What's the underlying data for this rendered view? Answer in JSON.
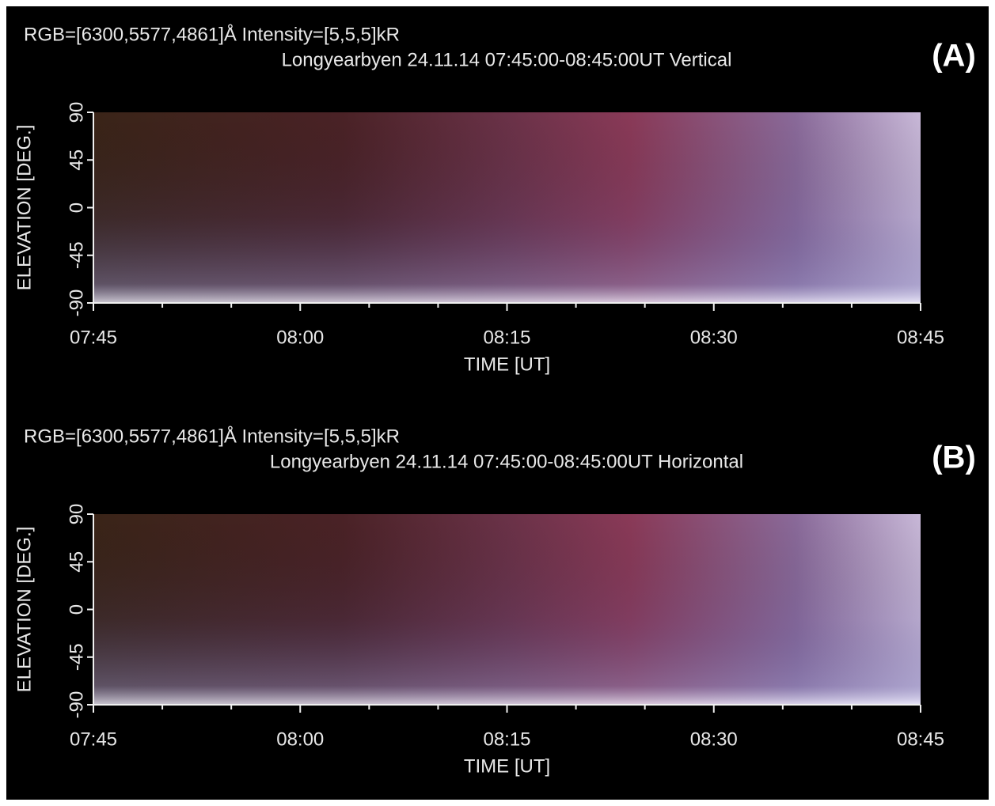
{
  "chart_data": [
    {
      "type": "keogram",
      "title": "RGB=[6300,5577,4861]Å Intensity=[5,5,5]kR",
      "subtitle": "Longyearbyen 24.11.14 07:45:00-08:45:00UT Vertical",
      "label": "(A)",
      "xlabel": "TIME [UT]",
      "ylabel": "ELEVATION [DEG.]",
      "categories": [
        "07:45",
        "08:00",
        "08:15",
        "08:30",
        "08:45"
      ],
      "ylim": [
        -90,
        90
      ],
      "yticks": [
        -90,
        -45,
        0,
        45,
        90
      ]
    },
    {
      "type": "keogram",
      "title": "RGB=[6300,5577,4861]Å Intensity=[5,5,5]kR",
      "subtitle": "Longyearbyen 24.11.14 07:45:00-08:45:00UT Horizontal",
      "label": "(B)",
      "xlabel": "TIME [UT]",
      "ylabel": "ELEVATION [DEG.]",
      "categories": [
        "07:45",
        "08:00",
        "08:15",
        "08:30",
        "08:45"
      ],
      "ylim": [
        -90,
        90
      ],
      "yticks": [
        -90,
        -45,
        0,
        45,
        90
      ]
    }
  ]
}
